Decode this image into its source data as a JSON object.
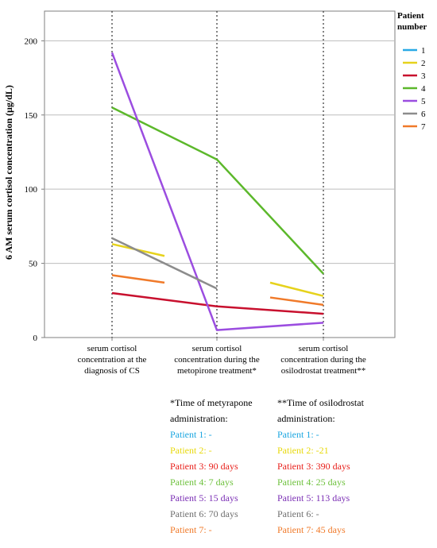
{
  "chart_data": {
    "type": "line",
    "ylabel": "6 AM serum cortisol concentration (µg/dL)",
    "ylim": [
      0,
      220
    ],
    "yticks": [
      0,
      50,
      100,
      150,
      200
    ],
    "grid": "horizontal",
    "categories": [
      [
        "serum cortisol",
        "concentration at the",
        "diagnosis of CS"
      ],
      [
        "serum cortisol",
        "concentration during the",
        "metopirone treatment*"
      ],
      [
        "serum cortisol",
        "concentration during the",
        "osilodrostat treatment**"
      ]
    ],
    "legend_title": [
      "Patient",
      "number"
    ],
    "legend_position": "top-right",
    "series": [
      {
        "name": "1",
        "color": "#29a9e6",
        "segments": []
      },
      {
        "name": "2",
        "color": "#e6d21c",
        "segments": [
          [
            [
              0.0,
              63
            ],
            [
              0.5,
              55
            ]
          ],
          [
            [
              1.5,
              37
            ],
            [
              2.0,
              28
            ]
          ]
        ]
      },
      {
        "name": "3",
        "color": "#c8102e",
        "segments": [
          [
            [
              0.0,
              30
            ],
            [
              1.0,
              21
            ],
            [
              2.0,
              16
            ]
          ]
        ]
      },
      {
        "name": "4",
        "color": "#5cb82b",
        "segments": [
          [
            [
              0.0,
              155
            ],
            [
              1.0,
              120
            ],
            [
              2.0,
              43
            ]
          ]
        ]
      },
      {
        "name": "5",
        "color": "#9b4de0",
        "segments": [
          [
            [
              0.0,
              192
            ],
            [
              1.0,
              5
            ],
            [
              2.0,
              10
            ]
          ]
        ]
      },
      {
        "name": "6",
        "color": "#8c8c8c",
        "segments": [
          [
            [
              0.0,
              67
            ],
            [
              1.0,
              33
            ]
          ]
        ]
      },
      {
        "name": "7",
        "color": "#f07a2a",
        "segments": [
          [
            [
              0.0,
              42
            ],
            [
              0.5,
              37
            ]
          ],
          [
            [
              1.5,
              27
            ],
            [
              2.0,
              22
            ]
          ]
        ]
      }
    ]
  },
  "notes": {
    "metyrapone": {
      "title": [
        "*Time of metyrapone",
        "administration:"
      ],
      "rows": [
        {
          "text": "Patient 1: -",
          "color": "#1ba6e0"
        },
        {
          "text": "Patient 2: -",
          "color": "#e8d90c"
        },
        {
          "text": "Patient 3: 90 days",
          "color": "#e8201b"
        },
        {
          "text": "Patient 4: 7 days",
          "color": "#6ec13d"
        },
        {
          "text": "Patient 5: 15 days",
          "color": "#7b2fb5"
        },
        {
          "text": "Patient 6: 70 days",
          "color": "#6f6f6f"
        },
        {
          "text": "Patient 7: -",
          "color": "#f07a2a"
        }
      ]
    },
    "osilodrostat": {
      "title": [
        "**Time of osilodrostat",
        "administration:"
      ],
      "rows": [
        {
          "text": "Patient 1: -",
          "color": "#1ba6e0"
        },
        {
          "text": "Patient 2: -21",
          "color": "#e8d90c"
        },
        {
          "text": "Patient 3: 390 days",
          "color": "#e8201b"
        },
        {
          "text": "Patient 4: 25 days",
          "color": "#6ec13d"
        },
        {
          "text": "Patient 5: 113 days",
          "color": "#7b2fb5"
        },
        {
          "text": "Patient 6: -",
          "color": "#6f6f6f"
        },
        {
          "text": "Patient 7: 45 days",
          "color": "#f07a2a"
        }
      ]
    }
  }
}
